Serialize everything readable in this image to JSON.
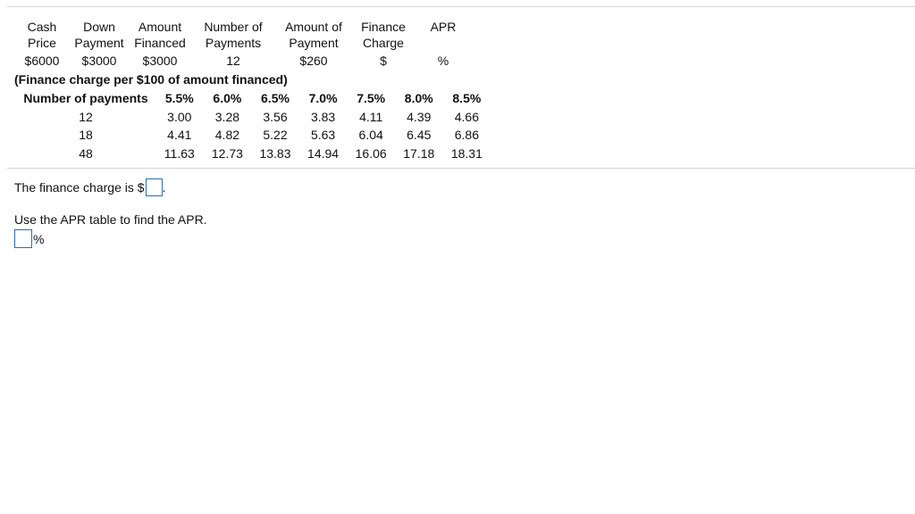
{
  "summary": {
    "headers": [
      [
        "Cash",
        "Price"
      ],
      [
        "Down",
        "Payment"
      ],
      [
        "Amount",
        "Financed"
      ],
      [
        "Number of",
        "Payments"
      ],
      [
        "Amount of",
        "Payment"
      ],
      [
        "Finance",
        "Charge"
      ],
      [
        "APR",
        ""
      ]
    ],
    "values": [
      "$6000",
      "$3000",
      "$3000",
      "12",
      "$260",
      "$",
      "%"
    ]
  },
  "rate_table": {
    "caption": "(Finance charge per $100 of amount financed)",
    "header": [
      "Number of payments",
      "5.5%",
      "6.0%",
      "6.5%",
      "7.0%",
      "7.5%",
      "8.0%",
      "8.5%"
    ],
    "rows": [
      [
        "12",
        "3.00",
        "3.28",
        "3.56",
        "3.83",
        "4.11",
        "4.39",
        "4.66"
      ],
      [
        "18",
        "4.41",
        "4.82",
        "5.22",
        "5.63",
        "6.04",
        "6.45",
        "6.86"
      ],
      [
        "48",
        "11.63",
        "12.73",
        "13.83",
        "14.94",
        "16.06",
        "17.18",
        "18.31"
      ]
    ]
  },
  "questions": {
    "finance_prefix": "The finance charge is $",
    "finance_suffix": ".",
    "apr_instruction": "Use the APR table to find the APR.",
    "apr_suffix": "%"
  }
}
